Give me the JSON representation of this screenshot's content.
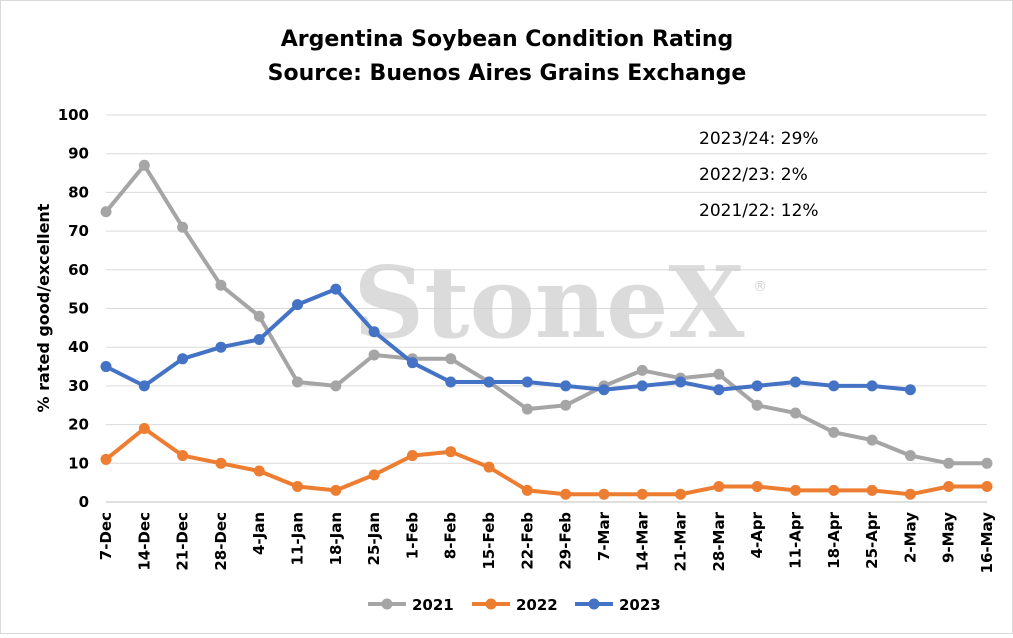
{
  "chart_data": {
    "type": "line",
    "title": "Argentina Soybean Condition Rating",
    "subtitle": "Source: Buenos Aires Grains Exchange",
    "ylabel": "% rated good/excellent",
    "xlabel": "",
    "ylim": [
      0,
      100
    ],
    "yticks": [
      "0",
      "10",
      "20",
      "30",
      "40",
      "50",
      "60",
      "70",
      "80",
      "90",
      "100"
    ],
    "grid": true,
    "legend_position": "bottom",
    "categories": [
      "7-Dec",
      "14-Dec",
      "21-Dec",
      "28-Dec",
      "4-Jan",
      "11-Jan",
      "18-Jan",
      "25-Jan",
      "1-Feb",
      "8-Feb",
      "15-Feb",
      "22-Feb",
      "29-Feb",
      "7-Mar",
      "14-Mar",
      "21-Mar",
      "28-Mar",
      "4-Apr",
      "11-Apr",
      "18-Apr",
      "25-Apr",
      "2-May",
      "9-May",
      "16-May"
    ],
    "series": [
      {
        "name": "2021",
        "color": "#a5a5a5",
        "values": [
          75,
          87,
          71,
          56,
          48,
          31,
          30,
          38,
          37,
          37,
          31,
          24,
          25,
          30,
          34,
          32,
          33,
          25,
          23,
          18,
          16,
          12,
          10,
          10
        ]
      },
      {
        "name": "2022",
        "color": "#ed7d31",
        "values": [
          11,
          19,
          12,
          10,
          8,
          4,
          3,
          7,
          12,
          13,
          9,
          3,
          2,
          2,
          2,
          2,
          4,
          4,
          3,
          3,
          3,
          2,
          4,
          4
        ]
      },
      {
        "name": "2023",
        "color": "#4472c4",
        "values": [
          35,
          30,
          37,
          40,
          42,
          51,
          55,
          44,
          36,
          31,
          31,
          31,
          30,
          29,
          30,
          31,
          29,
          30,
          31,
          30,
          30,
          29,
          null,
          null
        ]
      }
    ],
    "annotations": [
      "2023/24: 29%",
      "2022/23: 2%",
      "2021/22: 12%"
    ],
    "watermark": "StoneX",
    "watermark_mark": "®"
  }
}
